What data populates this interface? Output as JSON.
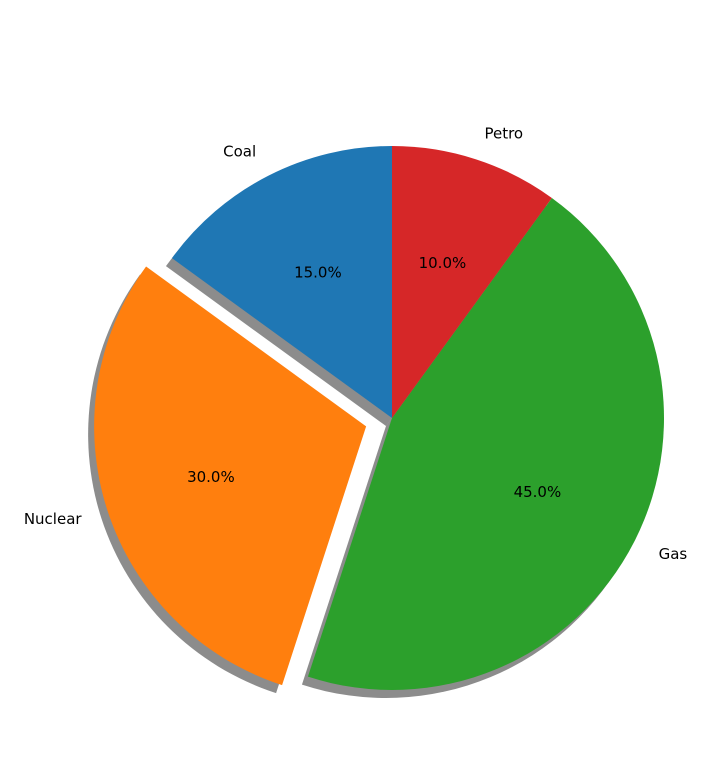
{
  "chart_data": {
    "type": "pie",
    "title": "",
    "slices": [
      {
        "label": "Coal",
        "value": 15.0,
        "pct_label": "15.0%",
        "color": "#1f77b4",
        "explode": false
      },
      {
        "label": "Nuclear",
        "value": 30.0,
        "pct_label": "30.0%",
        "color": "#ff7f0e",
        "explode": true
      },
      {
        "label": "Gas",
        "value": 45.0,
        "pct_label": "45.0%",
        "color": "#2ca02c",
        "explode": false
      },
      {
        "label": "Petro",
        "value": 10.0,
        "pct_label": "10.0%",
        "color": "#d62728",
        "explode": false
      }
    ],
    "start_angle_deg": 90,
    "direction": "counterclockwise",
    "shadow": true,
    "legend": "none"
  }
}
